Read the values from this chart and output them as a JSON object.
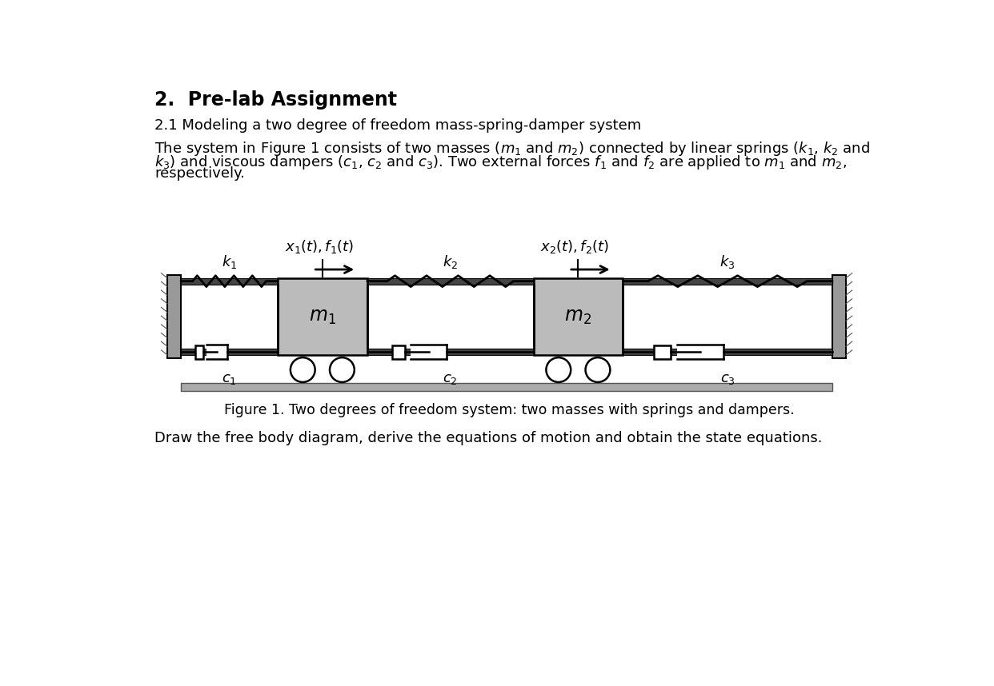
{
  "title": "2.  Pre-lab Assignment",
  "subtitle": "2.1 Modeling a two degree of freedom mass-spring-damper system",
  "body_line1": "The system in Figure 1 consists of two masses ($m_1$ and $m_2$) connected by linear springs ($k_1$, $k_2$ and",
  "body_line2": "$k_3$) and viscous dampers ($c_1$, $c_2$ and $c_3$). Two external forces $f_1$ and $f_2$ are applied to $m_1$ and $m_2$,",
  "body_line3": "respectively.",
  "caption": "Figure 1. Two degrees of freedom system: two masses with springs and dampers.",
  "footer": "Draw the free body diagram, derive the equations of motion and obtain the state equations.",
  "wall_color": "#999999",
  "mass_color": "#bbbbbb",
  "rail_color": "#888888",
  "ground_color": "#aaaaaa"
}
